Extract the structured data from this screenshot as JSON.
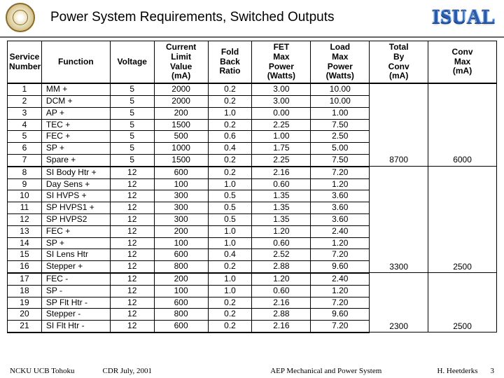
{
  "header": {
    "title": "Power System Requirements, Switched Outputs",
    "logo_text": "ISUAL"
  },
  "table": {
    "columns": [
      "Service\nNumber",
      "Function",
      "Voltage",
      "Current\nLimit\nValue\n(mA)",
      "Fold\nBack\nRatio",
      "FET\nMax\nPower\n(Watts)",
      "Load\nMax\nPower\n(Watts)",
      "Total\nBy\nConv\n(mA)",
      "Conv\nMax\n(mA)"
    ],
    "groups": [
      {
        "rows": [
          {
            "n": "1",
            "fn": "MM +",
            "v": "5",
            "cl": "2000",
            "fb": "0.2",
            "fet": "3.00",
            "ld": "10.00"
          },
          {
            "n": "2",
            "fn": "DCM +",
            "v": "5",
            "cl": "2000",
            "fb": "0.2",
            "fet": "3.00",
            "ld": "10.00"
          },
          {
            "n": "3",
            "fn": "AP +",
            "v": "5",
            "cl": "200",
            "fb": "1.0",
            "fet": "0.00",
            "ld": "1.00"
          },
          {
            "n": "4",
            "fn": "TEC +",
            "v": "5",
            "cl": "1500",
            "fb": "0.2",
            "fet": "2.25",
            "ld": "7.50"
          },
          {
            "n": "5",
            "fn": "FEC +",
            "v": "5",
            "cl": "500",
            "fb": "0.6",
            "fet": "1.00",
            "ld": "2.50"
          },
          {
            "n": "6",
            "fn": "SP +",
            "v": "5",
            "cl": "1000",
            "fb": "0.4",
            "fet": "1.75",
            "ld": "5.00"
          },
          {
            "n": "7",
            "fn": "Spare +",
            "v": "5",
            "cl": "1500",
            "fb": "0.2",
            "fet": "2.25",
            "ld": "7.50"
          }
        ],
        "total": "8700",
        "conv": "6000"
      },
      {
        "rows": [
          {
            "n": "8",
            "fn": "SI Body Htr +",
            "v": "12",
            "cl": "600",
            "fb": "0.2",
            "fet": "2.16",
            "ld": "7.20"
          },
          {
            "n": "9",
            "fn": "Day Sens +",
            "v": "12",
            "cl": "100",
            "fb": "1.0",
            "fet": "0.60",
            "ld": "1.20"
          },
          {
            "n": "10",
            "fn": "SI HVPS +",
            "v": "12",
            "cl": "300",
            "fb": "0.5",
            "fet": "1.35",
            "ld": "3.60"
          },
          {
            "n": "11",
            "fn": "SP HVPS1 +",
            "v": "12",
            "cl": "300",
            "fb": "0.5",
            "fet": "1.35",
            "ld": "3.60"
          },
          {
            "n": "12",
            "fn": "SP HVPS2",
            "v": "12",
            "cl": "300",
            "fb": "0.5",
            "fet": "1.35",
            "ld": "3.60"
          },
          {
            "n": "13",
            "fn": "FEC +",
            "v": "12",
            "cl": "200",
            "fb": "1.0",
            "fet": "1.20",
            "ld": "2.40"
          },
          {
            "n": "14",
            "fn": "SP +",
            "v": "12",
            "cl": "100",
            "fb": "1.0",
            "fet": "0.60",
            "ld": "1.20"
          },
          {
            "n": "15",
            "fn": "SI Lens Htr",
            "v": "12",
            "cl": "600",
            "fb": "0.4",
            "fet": "2.52",
            "ld": "7.20"
          },
          {
            "n": "16",
            "fn": "Stepper +",
            "v": "12",
            "cl": "800",
            "fb": "0.2",
            "fet": "2.88",
            "ld": "9.60"
          }
        ],
        "total": "3300",
        "conv": "2500"
      },
      {
        "rows": [
          {
            "n": "17",
            "fn": "FEC -",
            "v": "12",
            "cl": "200",
            "fb": "1.0",
            "fet": "1.20",
            "ld": "2.40"
          },
          {
            "n": "18",
            "fn": "SP -",
            "v": "12",
            "cl": "100",
            "fb": "1.0",
            "fet": "0.60",
            "ld": "1.20"
          },
          {
            "n": "19",
            "fn": "SP Flt Htr -",
            "v": "12",
            "cl": "600",
            "fb": "0.2",
            "fet": "2.16",
            "ld": "7.20"
          },
          {
            "n": "20",
            "fn": "Stepper -",
            "v": "12",
            "cl": "800",
            "fb": "0.2",
            "fet": "2.88",
            "ld": "9.60"
          },
          {
            "n": "21",
            "fn": "SI Flt Htr -",
            "v": "12",
            "cl": "600",
            "fb": "0.2",
            "fet": "2.16",
            "ld": "7.20"
          }
        ],
        "total": "2300",
        "conv": "2500"
      }
    ]
  },
  "footer": {
    "left": "NCKU   UCB   Tohoku",
    "mid1": "CDR  July,  2001",
    "mid2": "AEP Mechanical and Power System",
    "right": "H. Heetderks",
    "page": "3"
  }
}
